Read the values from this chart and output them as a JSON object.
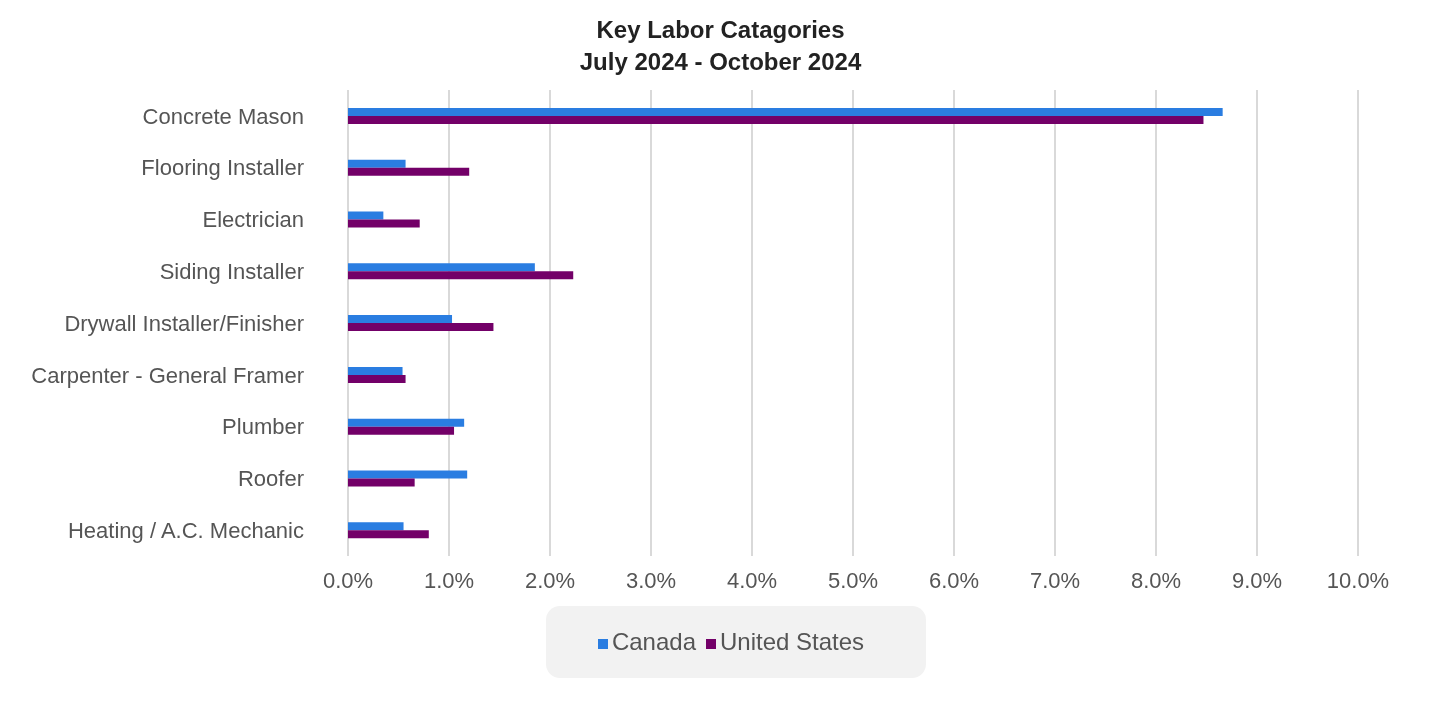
{
  "chart_data": {
    "type": "bar",
    "orientation": "horizontal",
    "title": "Key Labor Catagories",
    "subtitle": "July 2024 - October 2024",
    "categories": [
      "Concrete Mason",
      "Flooring Installer",
      "Electrician",
      "Siding Installer",
      "Drywall Installer/Finisher",
      "Carpenter - General Framer",
      "Plumber",
      "Roofer",
      "Heating / A.C. Mechanic"
    ],
    "series": [
      {
        "name": "Canada",
        "color": "#2a7de1",
        "values": [
          8.66,
          0.57,
          0.35,
          1.85,
          1.03,
          0.54,
          1.15,
          1.18,
          0.55
        ]
      },
      {
        "name": "United States",
        "color": "#730068",
        "values": [
          8.47,
          1.2,
          0.71,
          2.23,
          1.44,
          0.57,
          1.05,
          0.66,
          0.8
        ]
      }
    ],
    "xlim": [
      0,
      10
    ],
    "xticks": [
      {
        "value": 0,
        "label": "0.0%"
      },
      {
        "value": 1,
        "label": "1.0%"
      },
      {
        "value": 2,
        "label": "2.0%"
      },
      {
        "value": 3,
        "label": "3.0%"
      },
      {
        "value": 4,
        "label": "4.0%"
      },
      {
        "value": 5,
        "label": "5.0%"
      },
      {
        "value": 6,
        "label": "6.0%"
      },
      {
        "value": 7,
        "label": "7.0%"
      },
      {
        "value": 8,
        "label": "8.0%"
      },
      {
        "value": 9,
        "label": "9.0%"
      },
      {
        "value": 10,
        "label": "10.0%"
      }
    ],
    "grid": "x",
    "legend": "bottom"
  }
}
